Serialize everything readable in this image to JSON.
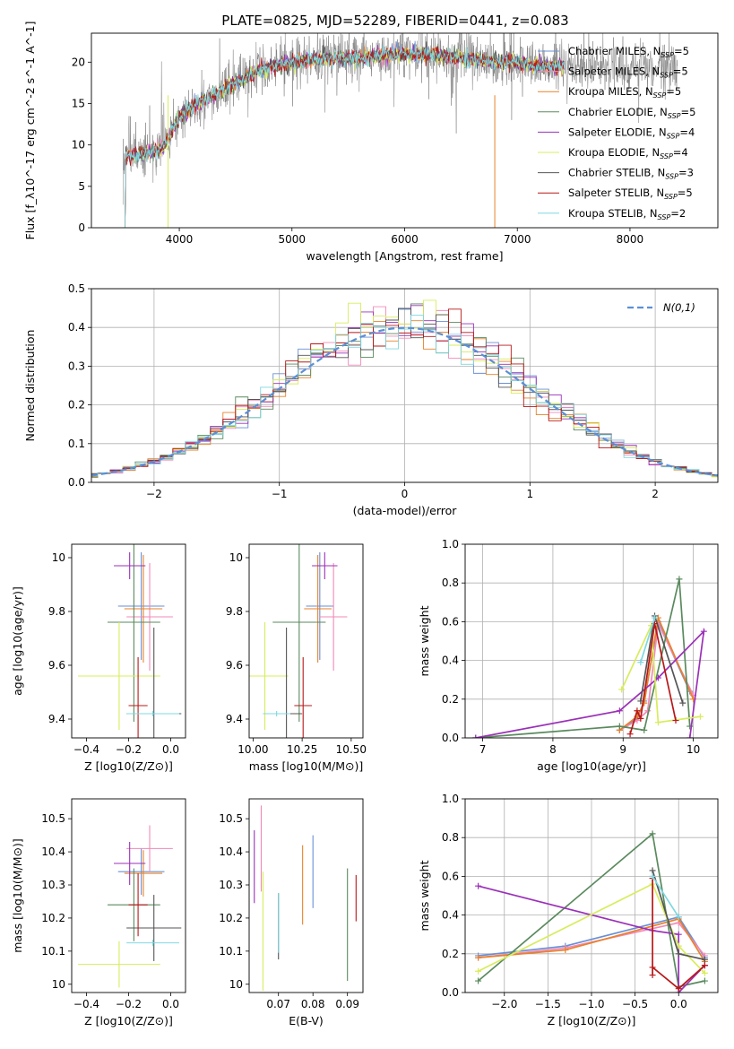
{
  "figure": {
    "title": "PLATE=0825, MJD=52289, FIBERID=0441, z=0.083"
  },
  "series": [
    {
      "name": "Chabrier MILES",
      "n_ssp": "5",
      "color": "#6a8fd6"
    },
    {
      "name": "Salpeter MILES",
      "n_ssp": "5",
      "color": "#f28ab8"
    },
    {
      "name": "Kroupa MILES",
      "n_ssp": "5",
      "color": "#e8822a"
    },
    {
      "name": "Chabrier ELODIE",
      "n_ssp": "5",
      "color": "#5a8a5e"
    },
    {
      "name": "Salpeter ELODIE",
      "n_ssp": "4",
      "color": "#9b30b8"
    },
    {
      "name": "Kroupa ELODIE",
      "n_ssp": "4",
      "color": "#d8ec5c"
    },
    {
      "name": "Chabrier STELIB",
      "n_ssp": "3",
      "color": "#555555"
    },
    {
      "name": "Salpeter STELIB",
      "n_ssp": "5",
      "color": "#b81818"
    },
    {
      "name": "Kroupa STELIB",
      "n_ssp": "2",
      "color": "#7fd8e0"
    }
  ],
  "chart_data": [
    {
      "id": "spectrum",
      "type": "line",
      "xlabel": "wavelength [Angstrom, rest frame]",
      "ylabel": "Flux [f_λ10^-17 erg cm^-2 s^-1 A^-1]",
      "xlim": [
        3220,
        8780
      ],
      "ylim": [
        0,
        23.5
      ],
      "xticks": [
        "4000",
        "5000",
        "6000",
        "7000",
        "8000"
      ],
      "yticks": [
        "0",
        "5",
        "10",
        "15",
        "20"
      ],
      "continuum": [
        [
          3500,
          8.5
        ],
        [
          3700,
          9.0
        ],
        [
          3850,
          9.5
        ],
        [
          3950,
          12.0
        ],
        [
          4000,
          13.5
        ],
        [
          4100,
          14.5
        ],
        [
          4300,
          16.0
        ],
        [
          4500,
          17.5
        ],
        [
          4700,
          19.0
        ],
        [
          5000,
          20.0
        ],
        [
          5300,
          20.5
        ],
        [
          5600,
          20.5
        ],
        [
          5900,
          21.0
        ],
        [
          6200,
          21.0
        ],
        [
          6500,
          20.5
        ],
        [
          6800,
          20.0
        ],
        [
          7000,
          20.0
        ],
        [
          7200,
          19.5
        ],
        [
          7400,
          19.5
        ]
      ],
      "model_range": [
        3500,
        7420
      ],
      "data_range": [
        3500,
        8420
      ]
    },
    {
      "id": "residuals",
      "type": "histogram",
      "xlabel": "(data-model)/error",
      "ylabel": "Normed distribution",
      "xlim": [
        -2.5,
        2.5
      ],
      "ylim": [
        0,
        0.5
      ],
      "xticks": [
        "−2",
        "−1",
        "0",
        "1",
        "2"
      ],
      "yticks": [
        "0.0",
        "0.1",
        "0.2",
        "0.3",
        "0.4",
        "0.5"
      ],
      "bin_width": 0.1,
      "gaussian_label": "N(0,1)"
    },
    {
      "id": "age-vs-Z",
      "type": "scatter",
      "xlabel": "Z [log10(Z/Z⊙)]",
      "ylabel": "age  [log10(age/yr)]",
      "xlim": [
        -0.47,
        0.07
      ],
      "ylim": [
        9.33,
        10.05
      ],
      "xticks": [
        -0.4,
        -0.2,
        0.0
      ],
      "yticks": [
        9.4,
        9.6,
        9.8,
        10.0
      ],
      "points": [
        {
          "s": 0,
          "x": -0.14,
          "xerr": 0.11,
          "y": 9.82,
          "yerr": 0.2
        },
        {
          "s": 1,
          "x": -0.1,
          "xerr": 0.11,
          "y": 9.78,
          "yerr": 0.2
        },
        {
          "s": 2,
          "x": -0.13,
          "xerr": 0.09,
          "y": 9.81,
          "yerr": 0.2
        },
        {
          "s": 3,
          "x": -0.175,
          "xerr": 0.125,
          "y": 9.76,
          "yerr": 0.37
        },
        {
          "s": 4,
          "x": -0.195,
          "xerr": 0.075,
          "y": 9.97,
          "yerr": 0.05
        },
        {
          "s": 5,
          "x": -0.245,
          "xerr": 0.195,
          "y": 9.56,
          "yerr": 0.2
        },
        {
          "s": 6,
          "x": -0.08,
          "xerr": 0.13,
          "y": 9.42,
          "yerr": 0.32
        },
        {
          "s": 7,
          "x": -0.155,
          "xerr": 0.045,
          "y": 9.45,
          "yerr": 0.18
        },
        {
          "s": 8,
          "x": -0.085,
          "xerr": 0.125,
          "y": 9.42,
          "yerr": 0.01
        }
      ]
    },
    {
      "id": "age-vs-mass",
      "type": "scatter",
      "xlabel": "mass [log10(M/M⊙)]",
      "ylabel": "",
      "xlim": [
        9.98,
        10.56
      ],
      "ylim": [
        9.33,
        10.05
      ],
      "xticks": [
        10.0,
        10.25,
        10.5
      ],
      "yticks": [
        9.4,
        9.6,
        9.8,
        10.0
      ],
      "points": [
        {
          "s": 0,
          "x": 10.34,
          "xerr": 0.07,
          "y": 9.82,
          "yerr": 0.2
        },
        {
          "s": 1,
          "x": 10.41,
          "xerr": 0.07,
          "y": 9.78,
          "yerr": 0.2
        },
        {
          "s": 2,
          "x": 10.33,
          "xerr": 0.07,
          "y": 9.81,
          "yerr": 0.2
        },
        {
          "s": 3,
          "x": 10.235,
          "xerr": 0.135,
          "y": 9.76,
          "yerr": 0.37
        },
        {
          "s": 4,
          "x": 10.365,
          "xerr": 0.065,
          "y": 9.97,
          "yerr": 0.05
        },
        {
          "s": 5,
          "x": 10.06,
          "xerr": 0.12,
          "y": 9.56,
          "yerr": 0.2
        },
        {
          "s": 6,
          "x": 10.17,
          "xerr": 0.08,
          "y": 9.42,
          "yerr": 0.32
        },
        {
          "s": 7,
          "x": 10.255,
          "xerr": 0.045,
          "y": 9.45,
          "yerr": 0.18
        },
        {
          "s": 8,
          "x": 10.12,
          "xerr": 0.07,
          "y": 9.42,
          "yerr": 0.01
        }
      ]
    },
    {
      "id": "weight-vs-age",
      "type": "line",
      "xlabel": "age  [log10(age/yr)]",
      "ylabel": "mass weight",
      "xlim": [
        6.75,
        10.35
      ],
      "ylim": [
        0,
        1.0
      ],
      "xticks": [
        7,
        8,
        9,
        10
      ],
      "yticks": [
        "0.0",
        "0.2",
        "0.4",
        "0.6",
        "0.8",
        "1.0"
      ],
      "lines": [
        {
          "s": 0,
          "pts": [
            [
              8.95,
              0.04
            ],
            [
              9.2,
              0.1
            ],
            [
              9.3,
              0.19
            ],
            [
              9.5,
              0.6
            ],
            [
              9.95,
              0.24
            ]
          ]
        },
        {
          "s": 1,
          "pts": [
            [
              8.95,
              0.04
            ],
            [
              9.2,
              0.09
            ],
            [
              9.35,
              0.14
            ],
            [
              9.5,
              0.59
            ],
            [
              10.0,
              0.22
            ]
          ]
        },
        {
          "s": 2,
          "pts": [
            [
              8.95,
              0.04
            ],
            [
              9.2,
              0.11
            ],
            [
              9.3,
              0.18
            ],
            [
              9.5,
              0.62
            ],
            [
              10.0,
              0.2
            ]
          ]
        },
        {
          "s": 3,
          "pts": [
            [
              6.9,
              0.0
            ],
            [
              8.95,
              0.06
            ],
            [
              9.3,
              0.04
            ],
            [
              9.8,
              0.82
            ],
            [
              9.95,
              0.06
            ]
          ]
        },
        {
          "s": 4,
          "pts": [
            [
              6.9,
              0.0
            ],
            [
              8.95,
              0.14
            ],
            [
              9.5,
              0.31
            ],
            [
              10.15,
              0.55
            ],
            [
              9.95,
              0.0
            ]
          ]
        },
        {
          "s": 5,
          "pts": [
            [
              8.98,
              0.25
            ],
            [
              9.4,
              0.58
            ],
            [
              9.5,
              0.08
            ],
            [
              10.1,
              0.11
            ]
          ]
        },
        {
          "s": 6,
          "pts": [
            [
              9.25,
              0.19
            ],
            [
              9.45,
              0.63
            ],
            [
              9.85,
              0.18
            ]
          ]
        },
        {
          "s": 7,
          "pts": [
            [
              9.1,
              0.02
            ],
            [
              9.2,
              0.14
            ],
            [
              9.25,
              0.1
            ],
            [
              9.45,
              0.59
            ],
            [
              9.75,
              0.09
            ]
          ]
        },
        {
          "s": 8,
          "pts": [
            [
              9.25,
              0.39
            ],
            [
              9.45,
              0.62
            ]
          ]
        }
      ]
    },
    {
      "id": "mass-vs-Z",
      "type": "scatter",
      "xlabel": "Z [log10(Z/Z⊙)]",
      "ylabel": "mass [log10(M/M⊙)]",
      "xlim": [
        -0.47,
        0.07
      ],
      "ylim": [
        9.975,
        10.56
      ],
      "xticks": [
        -0.4,
        -0.2,
        0.0
      ],
      "yticks": [
        10.0,
        10.1,
        10.2,
        10.3,
        10.4,
        10.5
      ],
      "points": [
        {
          "s": 0,
          "x": -0.14,
          "xerr": 0.11,
          "y": 10.34,
          "yerr": 0.07
        },
        {
          "s": 1,
          "x": -0.1,
          "xerr": 0.11,
          "y": 10.41,
          "yerr": 0.07
        },
        {
          "s": 2,
          "x": -0.13,
          "xerr": 0.09,
          "y": 10.335,
          "yerr": 0.07
        },
        {
          "s": 3,
          "x": -0.175,
          "xerr": 0.125,
          "y": 10.24,
          "yerr": 0.11
        },
        {
          "s": 4,
          "x": -0.195,
          "xerr": 0.075,
          "y": 10.365,
          "yerr": 0.065
        },
        {
          "s": 5,
          "x": -0.245,
          "xerr": 0.195,
          "y": 10.06,
          "yerr": 0.07
        },
        {
          "s": 6,
          "x": -0.08,
          "xerr": 0.13,
          "y": 10.17,
          "yerr": 0.1
        },
        {
          "s": 7,
          "x": -0.155,
          "xerr": 0.045,
          "y": 10.24,
          "yerr": 0.095
        },
        {
          "s": 8,
          "x": -0.085,
          "xerr": 0.125,
          "y": 10.125,
          "yerr": 0.01
        }
      ]
    },
    {
      "id": "mass-vs-ebv",
      "type": "scatter",
      "xlabel": "E(B-V)",
      "ylabel": "",
      "xlim": [
        0.0615,
        0.0945
      ],
      "ylim": [
        9.975,
        10.56
      ],
      "xticks": [
        "0.07",
        "0.08",
        "0.09"
      ],
      "yticks": [
        10.0,
        10.1,
        10.2,
        10.3,
        10.4,
        10.5
      ],
      "points": [
        {
          "s": 0,
          "x": 0.08,
          "y": 10.34,
          "yerr": 0.11
        },
        {
          "s": 1,
          "x": 0.065,
          "y": 10.41,
          "yerr": 0.13
        },
        {
          "s": 2,
          "x": 0.077,
          "y": 10.3,
          "yerr": 0.12
        },
        {
          "s": 3,
          "x": 0.09,
          "y": 10.18,
          "yerr": 0.17
        },
        {
          "s": 4,
          "x": 0.063,
          "y": 10.355,
          "yerr": 0.11
        },
        {
          "s": 5,
          "x": 0.0655,
          "y": 10.16,
          "yerr": 0.18
        },
        {
          "s": 6,
          "x": 0.07,
          "y": 10.175,
          "yerr": 0.1
        },
        {
          "s": 7,
          "x": 0.0925,
          "y": 10.26,
          "yerr": 0.07
        },
        {
          "s": 8,
          "x": 0.07,
          "y": 10.185,
          "yerr": 0.09
        }
      ]
    },
    {
      "id": "weight-vs-Z",
      "type": "line",
      "xlabel": "Z [log10(Z/Z⊙)]",
      "ylabel": "mass weight",
      "xlim": [
        -2.45,
        0.45
      ],
      "ylim": [
        0,
        1.0
      ],
      "xticks": [
        "−2.0",
        "−1.5",
        "−1.0",
        "−0.5",
        "0.0"
      ],
      "yticks": [
        "0.0",
        "0.2",
        "0.4",
        "0.6",
        "0.8",
        "1.0"
      ],
      "lines": [
        {
          "s": 0,
          "pts": [
            [
              -2.3,
              0.19
            ],
            [
              -1.3,
              0.24
            ],
            [
              0.0,
              0.39
            ],
            [
              0.3,
              0.18
            ]
          ]
        },
        {
          "s": 1,
          "pts": [
            [
              -2.3,
              0.18
            ],
            [
              -1.3,
              0.23
            ],
            [
              0.0,
              0.36
            ],
            [
              0.3,
              0.19
            ]
          ]
        },
        {
          "s": 2,
          "pts": [
            [
              -2.3,
              0.18
            ],
            [
              -1.3,
              0.22
            ],
            [
              0.0,
              0.38
            ],
            [
              0.3,
              0.16
            ]
          ]
        },
        {
          "s": 3,
          "pts": [
            [
              -2.3,
              0.06
            ],
            [
              -0.3,
              0.82
            ],
            [
              0.0,
              0.03
            ],
            [
              0.3,
              0.06
            ]
          ]
        },
        {
          "s": 4,
          "pts": [
            [
              -2.3,
              0.55
            ],
            [
              -0.3,
              0.32
            ],
            [
              0.0,
              0.3
            ],
            [
              0.0,
              0.0
            ],
            [
              0.3,
              0.14
            ]
          ]
        },
        {
          "s": 5,
          "pts": [
            [
              -2.3,
              0.11
            ],
            [
              -0.3,
              0.56
            ],
            [
              0.0,
              0.24
            ],
            [
              0.3,
              0.1
            ]
          ]
        },
        {
          "s": 6,
          "pts": [
            [
              -0.3,
              0.63
            ],
            [
              0.0,
              0.2
            ],
            [
              0.3,
              0.17
            ]
          ]
        },
        {
          "s": 7,
          "pts": [
            [
              -0.3,
              0.59
            ],
            [
              -0.3,
              0.09
            ],
            [
              -0.3,
              0.13
            ],
            [
              0.0,
              0.02
            ],
            [
              0.3,
              0.14
            ]
          ]
        },
        {
          "s": 8,
          "pts": [
            [
              -0.3,
              0.6
            ],
            [
              0.0,
              0.39
            ]
          ]
        }
      ]
    }
  ]
}
